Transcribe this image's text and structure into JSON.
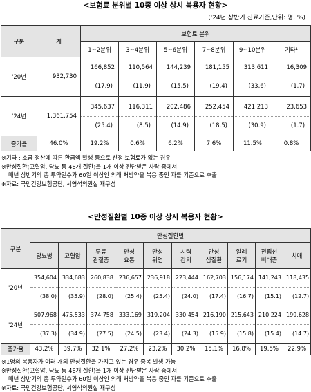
{
  "table1": {
    "title": "<보험료 분위별 10종 이상 상시 복용자 현황>",
    "unit": "('24년 상반기 진료기준,단위: 명, %)",
    "header": {
      "category": "구분",
      "total": "계",
      "group": "보험료 분위",
      "columns": [
        "1~2분위",
        "3~4분위",
        "5~6분위",
        "7~8분위",
        "9~10분위",
        "기타¹"
      ]
    },
    "rows": [
      {
        "label": "'20년",
        "total": "932,730",
        "values": [
          "166,852",
          "110,564",
          "144,239",
          "181,155",
          "313,611",
          "16,309"
        ],
        "shares": [
          "(17.9)",
          "(11.9)",
          "(15.5)",
          "(19.4)",
          "(33.6)",
          "(1.7)"
        ]
      },
      {
        "label": "'24년",
        "total": "1,361,754",
        "values": [
          "345,637",
          "116,311",
          "202,486",
          "252,454",
          "421,213",
          "23,653"
        ],
        "shares": [
          "(25.4)",
          "(8.5)",
          "(14.9)",
          "(18.5)",
          "(30.9)",
          "(1.7)"
        ]
      }
    ],
    "increase": {
      "label": "증가율",
      "total": "46.0%",
      "values": [
        "19.2%",
        "0.6%",
        "6.2%",
        "7.6%",
        "11.5%",
        "0.8%"
      ]
    },
    "notes": [
      "※기타 : 소급 정산에 따른 환급액 발생 등으로 산정 보험료가 없는 경우",
      "※만성질환(고혈압, 당뇨 등 46개 질환)을 1개 이상 진단받은 사람 중에서",
      "매년 상반기의 총 투약일수가 60일 이상인 외래 처방약을 복용 중인 자를 기준으로 추출",
      "※자료: 국민건강보험공단, 서영석의원실 재구성"
    ]
  },
  "table2": {
    "title": "<만성질환별 10종 이상 상시 복용자 현황>",
    "header": {
      "category": "구분",
      "group": "만성질환별",
      "columns": [
        [
          "당뇨병"
        ],
        [
          "고혈압"
        ],
        [
          "무릎",
          "관절증"
        ],
        [
          "만성",
          "요통"
        ],
        [
          "만성",
          "위염"
        ],
        [
          "시력",
          "감퇴"
        ],
        [
          "만성",
          "심질환"
        ],
        [
          "알레",
          "르기"
        ],
        [
          "전립선",
          "비대증"
        ],
        [
          "치매"
        ]
      ]
    },
    "rows": [
      {
        "label": "'20년",
        "values": [
          "354,604",
          "334,683",
          "260,838",
          "236,657",
          "236,918",
          "223,444",
          "162,703",
          "156,174",
          "141,243",
          "118,435"
        ],
        "shares": [
          "(38.0)",
          "(35.9)",
          "(28.0)",
          "(25.4)",
          "(25.4)",
          "(24.0)",
          "(17.4)",
          "(16.7)",
          "(15.1)",
          "(12.7)"
        ]
      },
      {
        "label": "'24년",
        "values": [
          "507,968",
          "475,533",
          "374,758",
          "333,169",
          "319,204",
          "330,454",
          "216,190",
          "215,643",
          "210,224",
          "199,628"
        ],
        "shares": [
          "(37.3)",
          "(34.9)",
          "(27.5)",
          "(24.5)",
          "(23.4)",
          "(24.3)",
          "(15.9)",
          "(15.8)",
          "(15.4)",
          "(14.7)"
        ]
      }
    ],
    "increase": {
      "label": "증가율",
      "values": [
        "43.2%",
        "39.7%",
        "32.1%",
        "27.2%",
        "23.2%",
        "30.2%",
        "15.1%",
        "16.8%",
        "19.5%",
        "22.9%"
      ]
    },
    "notes": [
      "※1명의 복용자가 여러 개의 만성질환을 가지고 있는 경우 중복 발생 가능",
      "※만성질환(고혈압, 당뇨 등 46개 질환)을 1개 이상 진단받은 사람 중에서",
      "매년 상반기의 총 투약일수가 60일 이상인 외래 처방약을 복용 중인 자를 기준으로 추출",
      "※자료: 국민건강보험공단, 서영석의원실 재구성"
    ]
  }
}
